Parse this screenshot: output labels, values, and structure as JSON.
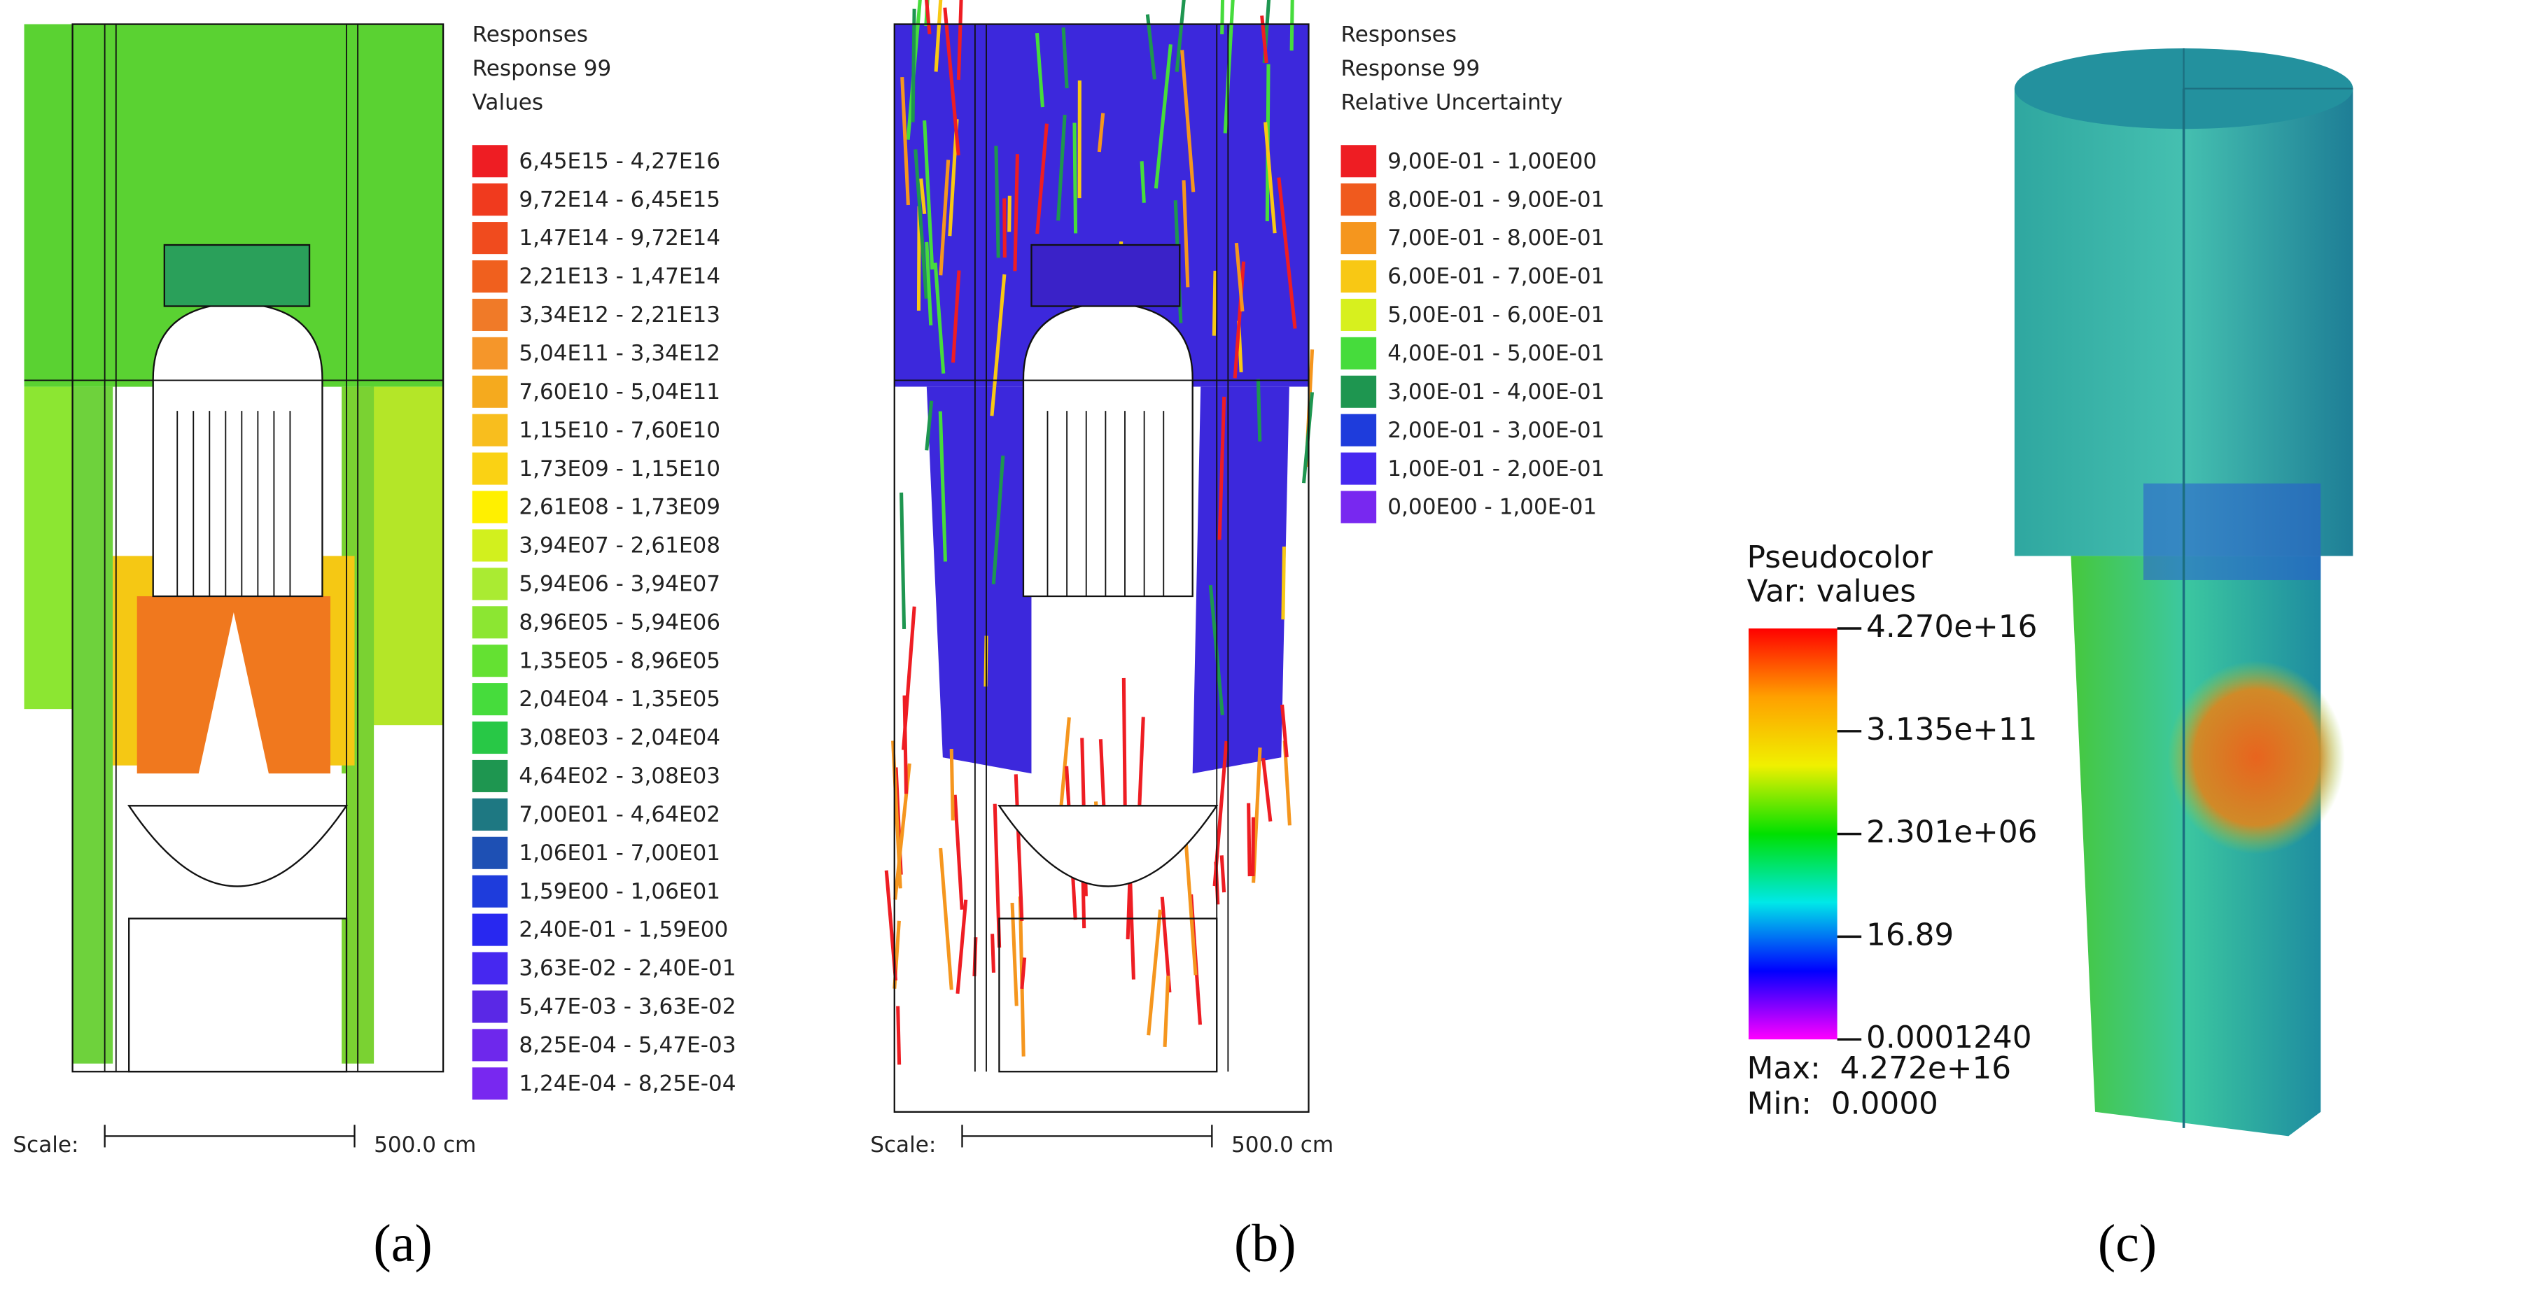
{
  "panels": [
    {
      "legend_title": [
        "Responses",
        "Response 99",
        "Values"
      ],
      "legend": [
        {
          "label": "6,45E15 - 4,27E16",
          "color": "#ee1d23"
        },
        {
          "label": "9,72E14 - 6,45E15",
          "color": "#f03a1e"
        },
        {
          "label": "1,47E14 - 9,72E14",
          "color": "#f04b1e"
        },
        {
          "label": "2,21E13 - 1,47E14",
          "color": "#f0601e"
        },
        {
          "label": "3,34E12 - 2,21E13",
          "color": "#f07a28"
        },
        {
          "label": "5,04E11 - 3,34E12",
          "color": "#f5962a"
        },
        {
          "label": "7,60E10 - 5,04E11",
          "color": "#f5aa1e"
        },
        {
          "label": "1,15E10 - 7,60E10",
          "color": "#f8be1e"
        },
        {
          "label": "1,73E09 - 1,15E10",
          "color": "#fad214"
        },
        {
          "label": "2,61E08 - 1,73E09",
          "color": "#fff000"
        },
        {
          "label": "3,94E07 - 2,61E08",
          "color": "#d2f01e"
        },
        {
          "label": "5,94E06 - 3,94E07",
          "color": "#aaeb32"
        },
        {
          "label": "8,96E05 - 5,94E06",
          "color": "#8ce632"
        },
        {
          "label": "1,35E05 - 8,96E05",
          "color": "#64e132"
        },
        {
          "label": "2,04E04 - 1,35E05",
          "color": "#46dc3c"
        },
        {
          "label": "3,08E03 - 2,04E04",
          "color": "#28c846"
        },
        {
          "label": "4,64E02 - 3,08E03",
          "color": "#1e9650"
        },
        {
          "label": "7,00E01 - 4,64E02",
          "color": "#1e7882"
        },
        {
          "label": "1,06E01 - 7,00E01",
          "color": "#1e50b4"
        },
        {
          "label": "1,59E00 - 1,06E01",
          "color": "#1e3cdc"
        },
        {
          "label": "2,40E-01 - 1,59E00",
          "color": "#2828f0"
        },
        {
          "label": "3,63E-02 - 2,40E-01",
          "color": "#4628f0"
        },
        {
          "label": "5,47E-03 - 3,63E-02",
          "color": "#5a28e6"
        },
        {
          "label": "8,25E-04 - 5,47E-03",
          "color": "#6e28ec"
        },
        {
          "label": "1,24E-04 - 8,25E-04",
          "color": "#7828f0"
        }
      ],
      "scale_label": "Scale:",
      "scale_length": "500.0 cm",
      "caption": "(a)"
    },
    {
      "legend_title": [
        "Responses",
        "Response 99",
        "Relative Uncertainty"
      ],
      "legend": [
        {
          "label": "9,00E-01 - 1,00E00",
          "color": "#ee1d23"
        },
        {
          "label": "8,00E-01 - 9,00E-01",
          "color": "#f05a1e"
        },
        {
          "label": "7,00E-01 - 8,00E-01",
          "color": "#f5961e"
        },
        {
          "label": "6,00E-01 - 7,00E-01",
          "color": "#f8c814"
        },
        {
          "label": "5,00E-01 - 6,00E-01",
          "color": "#d7f01e"
        },
        {
          "label": "4,00E-01 - 5,00E-01",
          "color": "#46dc3c"
        },
        {
          "label": "3,00E-01 - 4,00E-01",
          "color": "#1e9650"
        },
        {
          "label": "2,00E-01 - 3,00E-01",
          "color": "#1e3cdc"
        },
        {
          "label": "1,00E-01 - 2,00E-01",
          "color": "#4628f0"
        },
        {
          "label": "0,00E00 - 1,00E-01",
          "color": "#7828f0"
        }
      ],
      "scale_label": "Scale:",
      "scale_length": "500.0 cm",
      "caption": "(b)"
    }
  ],
  "colorbar_panel": {
    "title": "Pseudocolor",
    "variable": "Var: values",
    "ticks": [
      "4.270e+16",
      "3.135e+11",
      "2.301e+06",
      "16.89",
      "0.0001240"
    ],
    "colors": [
      "#ff0000",
      "#ffa000",
      "#f0f000",
      "#00e000",
      "#00e8e8",
      "#0000ff",
      "#ff00ff"
    ],
    "max": "Max:  4.272e+16",
    "min": "Min:  0.0000",
    "caption": "(c)"
  }
}
